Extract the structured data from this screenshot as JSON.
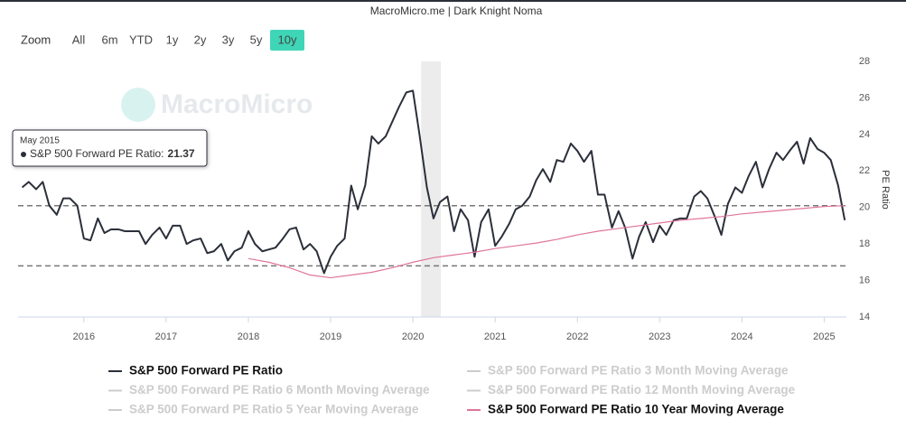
{
  "chart_data": {
    "type": "line",
    "title": "MacroMicro.me | Dark Knight Noma",
    "y_label": "PE Ratio",
    "watermark": "MacroMicro",
    "zoom_label": "Zoom",
    "zoom_buttons": [
      "All",
      "6m",
      "YTD",
      "1y",
      "2y",
      "3y",
      "5y",
      "10y"
    ],
    "zoom_selected": "10y",
    "xlim": [
      2015.2,
      2025.27
    ],
    "xticks": [
      2016,
      2017,
      2018,
      2019,
      2020,
      2021,
      2022,
      2023,
      2024,
      2025
    ],
    "ylim": [
      14,
      28
    ],
    "yticks": [
      14,
      16,
      18,
      20,
      22,
      24,
      26,
      28
    ],
    "reference_lines": [
      20.1,
      16.8
    ],
    "shaded_x": [
      2020.1,
      2020.34
    ],
    "x": [
      2015.25,
      2015.33,
      2015.42,
      2015.5,
      2015.58,
      2015.67,
      2015.75,
      2015.83,
      2015.92,
      2016.0,
      2016.08,
      2016.17,
      2016.25,
      2016.33,
      2016.42,
      2016.5,
      2016.58,
      2016.67,
      2016.75,
      2016.83,
      2016.92,
      2017.0,
      2017.08,
      2017.17,
      2017.25,
      2017.33,
      2017.42,
      2017.5,
      2017.58,
      2017.67,
      2017.75,
      2017.83,
      2017.92,
      2018.0,
      2018.08,
      2018.17,
      2018.25,
      2018.33,
      2018.42,
      2018.5,
      2018.58,
      2018.67,
      2018.75,
      2018.83,
      2018.92,
      2019.0,
      2019.08,
      2019.17,
      2019.25,
      2019.33,
      2019.42,
      2019.5,
      2019.58,
      2019.67,
      2019.75,
      2019.83,
      2019.92,
      2020.0,
      2020.08,
      2020.17,
      2020.25,
      2020.33,
      2020.42,
      2020.5,
      2020.58,
      2020.67,
      2020.75,
      2020.83,
      2020.92,
      2021.0,
      2021.08,
      2021.17,
      2021.25,
      2021.33,
      2021.42,
      2021.5,
      2021.58,
      2021.67,
      2021.75,
      2021.83,
      2021.92,
      2022.0,
      2022.08,
      2022.17,
      2022.25,
      2022.33,
      2022.42,
      2022.5,
      2022.58,
      2022.67,
      2022.75,
      2022.83,
      2022.92,
      2023.0,
      2023.08,
      2023.17,
      2023.25,
      2023.33,
      2023.42,
      2023.5,
      2023.58,
      2023.67,
      2023.75,
      2023.83,
      2023.92,
      2024.0,
      2024.08,
      2024.17,
      2024.25,
      2024.33,
      2024.42,
      2024.5,
      2024.58,
      2024.67,
      2024.75,
      2024.83,
      2024.92,
      2025.0,
      2025.08,
      2025.17,
      2025.25
    ],
    "series": [
      {
        "name": "S&P 500 Forward PE Ratio",
        "color": "#2b2f3a",
        "visible": true,
        "values": [
          21.1,
          21.4,
          21.0,
          21.4,
          20.1,
          19.6,
          20.5,
          20.5,
          20.1,
          18.3,
          18.2,
          19.4,
          18.6,
          18.8,
          18.8,
          18.7,
          18.7,
          18.7,
          18.0,
          18.5,
          18.9,
          18.3,
          19.0,
          19.0,
          18.0,
          18.2,
          18.3,
          17.5,
          17.6,
          18.0,
          17.1,
          17.6,
          17.8,
          18.7,
          18.0,
          17.6,
          17.7,
          17.8,
          18.3,
          18.8,
          18.9,
          17.7,
          18.0,
          17.6,
          16.4,
          17.3,
          17.9,
          18.3,
          21.2,
          19.9,
          21.2,
          23.9,
          23.5,
          23.9,
          24.7,
          25.5,
          26.3,
          26.4,
          24.0,
          21.1,
          19.4,
          20.3,
          20.6,
          18.7,
          19.9,
          19.3,
          17.3,
          19.2,
          19.9,
          17.9,
          18.4,
          19.1,
          19.9,
          20.1,
          20.6,
          21.5,
          22.1,
          21.4,
          22.6,
          22.5,
          23.5,
          23.1,
          22.5,
          23.1,
          20.7,
          20.7,
          18.9,
          19.8,
          18.9,
          17.2,
          18.4,
          19.2,
          18.1,
          19.0,
          18.5,
          19.3,
          19.4,
          19.4,
          20.6,
          20.9,
          20.5,
          19.5,
          18.5,
          20.2,
          21.1,
          20.8,
          21.7,
          22.5,
          21.1,
          22.1,
          23.0,
          22.6,
          23.1,
          23.6,
          22.4,
          23.8,
          23.2,
          23.0,
          22.6,
          21.2,
          19.3
        ]
      },
      {
        "name": "S&P 500 Forward PE Ratio 3 Month Moving Average",
        "color": "#cccccc",
        "visible": false
      },
      {
        "name": "S&P 500 Forward PE Ratio 6 Month Moving Average",
        "color": "#cccccc",
        "visible": false
      },
      {
        "name": "S&P 500 Forward PE Ratio 12 Month Moving Average",
        "color": "#cccccc",
        "visible": false
      },
      {
        "name": "S&P 500 Forward PE Ratio 5 Year Moving Average",
        "color": "#cccccc",
        "visible": false
      },
      {
        "name": "S&P 500 Forward PE Ratio 10 Year Moving Average",
        "color": "#e0759a",
        "visible": true,
        "x": [
          2018.0,
          2018.25,
          2018.5,
          2018.75,
          2019.0,
          2019.25,
          2019.5,
          2019.75,
          2020.0,
          2020.25,
          2020.5,
          2020.75,
          2021.0,
          2021.25,
          2021.5,
          2021.75,
          2022.0,
          2022.25,
          2022.5,
          2022.75,
          2023.0,
          2023.25,
          2023.5,
          2023.75,
          2024.0,
          2024.25,
          2024.5,
          2024.75,
          2025.0,
          2025.25
        ],
        "values": [
          17.2,
          17.0,
          16.7,
          16.3,
          16.15,
          16.3,
          16.45,
          16.7,
          17.0,
          17.25,
          17.4,
          17.55,
          17.75,
          17.9,
          18.05,
          18.25,
          18.5,
          18.7,
          18.85,
          19.0,
          19.15,
          19.3,
          19.4,
          19.5,
          19.65,
          19.75,
          19.85,
          19.95,
          20.05,
          20.1
        ]
      }
    ],
    "tooltip": {
      "date": "May 2015",
      "label": "S&P 500 Forward PE Ratio:",
      "value": 21.37
    }
  }
}
